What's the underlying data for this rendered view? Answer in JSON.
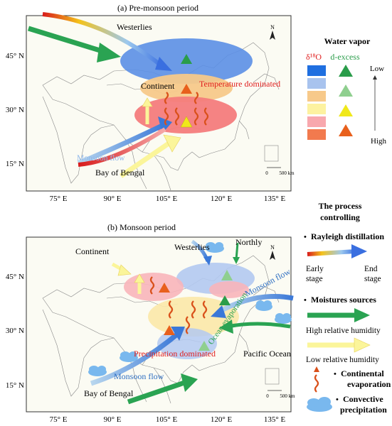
{
  "panel_a": {
    "title": "(a) Pre-monsoon period",
    "lat_labels": [
      "45° N",
      "30° N",
      "15° N"
    ],
    "lon_labels": [
      "75° E",
      "90° E",
      "105° E",
      "120° E",
      "135° E"
    ],
    "labels": {
      "westerlies": "Westerlies",
      "continent": "Continent",
      "temperature": "Temperature dominated",
      "monsoon_flow": "Monsoon flow",
      "bay": "Bay of Bengal"
    },
    "north": "N",
    "scale": {
      "zero": "0",
      "dist": "500 km"
    }
  },
  "panel_b": {
    "title": "(b) Monsoon period",
    "lat_labels": [
      "45° N",
      "30° N",
      "15° N"
    ],
    "lon_labels": [
      "75° E",
      "90° E",
      "105° E",
      "120° E",
      "135° E"
    ],
    "labels": {
      "continent": "Continent",
      "westerlies": "Westerlies",
      "northly": "Northly",
      "monsoon_flow_right": "Monsoon flow",
      "ocean_evaporation": "Ocean evaporation",
      "precipitation": "Precipitation dominated",
      "pacific": "Pacific Ocean",
      "monsoon_flow_bottom": "Monsoon flow",
      "bay": "Bay of Bengal"
    },
    "north": "N",
    "scale": {
      "zero": "0",
      "dist": "500 km"
    }
  },
  "legend_vapor": {
    "title": "Water vapor",
    "col1": "δ¹⁸O",
    "col2": "d-excess",
    "low": "Low",
    "high": "High",
    "swatches": [
      "#1f6fe0",
      "#a8c3ee",
      "#f7c98a",
      "#fdf2a0",
      "#f8a8ae",
      "#f27a4e"
    ],
    "triangles": [
      "#2a9d4a",
      "#8fcf8f",
      "#f0e81a",
      "#e8601c"
    ]
  },
  "legend_process": {
    "title_line1": "The process",
    "title_line2": "controlling",
    "rayleigh": "Rayleigh distillation",
    "early": "Early",
    "early2": "stage",
    "end": "End",
    "end2": "stage",
    "moisture": "Moistures sources",
    "high_rh": "High relative humidity",
    "low_rh": "Low relative humidity",
    "cont_evap_1": "Continental",
    "cont_evap_2": "evaporation",
    "conv_1": "Convective",
    "conv_2": "precipitation"
  }
}
